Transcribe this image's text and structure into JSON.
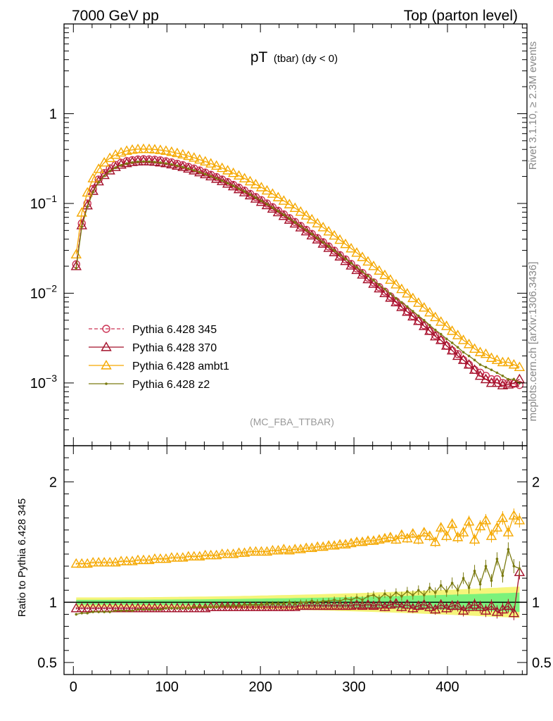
{
  "header": {
    "left_label": "7000 GeV pp",
    "right_label": "Top (parton level)"
  },
  "side_labels": {
    "rivet": "Rivet 3.1.10, ≥ 2.3M events",
    "mcplots": "mcplots.cern.ch [arXiv:1306.3436]"
  },
  "chart_data": [
    {
      "type": "line",
      "title": "pT (tbar) (dy < 0)",
      "title_main": "pT",
      "title_sub": "(tbar) (dy < 0)",
      "analysis_label": "(MC_FBA_TTBAR)",
      "xlabel": "",
      "ylabel": "",
      "xlim": [
        -10,
        485
      ],
      "ylim": [
        0.0002,
        10
      ],
      "yscale": "log",
      "ytick_labels": [
        "10^-3",
        "10^-2",
        "10^-1",
        "1"
      ],
      "legend_position": "middle-left",
      "x": [
        3,
        9,
        15,
        21,
        27,
        33,
        39,
        45,
        51,
        57,
        63,
        69,
        75,
        81,
        87,
        93,
        99,
        105,
        111,
        117,
        123,
        129,
        135,
        141,
        147,
        153,
        159,
        165,
        171,
        177,
        183,
        189,
        195,
        201,
        207,
        213,
        219,
        225,
        231,
        237,
        243,
        249,
        255,
        261,
        267,
        273,
        279,
        285,
        291,
        297,
        303,
        309,
        315,
        321,
        327,
        333,
        339,
        345,
        351,
        357,
        363,
        369,
        375,
        381,
        387,
        393,
        399,
        405,
        411,
        417,
        423,
        429,
        435,
        441,
        447,
        453,
        459,
        465,
        471,
        477
      ],
      "series": [
        {
          "name": "Pythia 6.428 345",
          "color": "#cc3355",
          "marker": "circle",
          "line": "dashed",
          "values": [
            0.021,
            0.06,
            0.1,
            0.145,
            0.185,
            0.218,
            0.246,
            0.268,
            0.284,
            0.296,
            0.304,
            0.309,
            0.311,
            0.31,
            0.307,
            0.302,
            0.295,
            0.287,
            0.277,
            0.267,
            0.256,
            0.245,
            0.233,
            0.221,
            0.209,
            0.197,
            0.185,
            0.173,
            0.161,
            0.15,
            0.139,
            0.128,
            0.118,
            0.109,
            0.1,
            0.091,
            0.083,
            0.0756,
            0.0686,
            0.0622,
            0.0562,
            0.0508,
            0.0458,
            0.0412,
            0.037,
            0.0332,
            0.0298,
            0.0266,
            0.0238,
            0.0212,
            0.0189,
            0.0168,
            0.0149,
            0.0132,
            0.0117,
            0.0104,
            0.0092,
            0.0081,
            0.0072,
            0.0063,
            0.0056,
            0.0049,
            0.0044,
            0.0038,
            0.0034,
            0.003,
            0.0026,
            0.0023,
            0.0021,
            0.0018,
            0.0016,
            0.0014,
            0.0013,
            0.0012,
            0.0011,
            0.0011,
            0.001,
            0.001,
            0.00098,
            0.00095
          ]
        },
        {
          "name": "Pythia 6.428 370",
          "color": "#a3102a",
          "marker": "triangle",
          "line": "solid",
          "values": [
            0.02,
            0.057,
            0.095,
            0.138,
            0.176,
            0.207,
            0.233,
            0.254,
            0.27,
            0.281,
            0.289,
            0.293,
            0.295,
            0.294,
            0.291,
            0.286,
            0.28,
            0.272,
            0.263,
            0.254,
            0.244,
            0.233,
            0.222,
            0.211,
            0.2,
            0.188,
            0.177,
            0.166,
            0.155,
            0.144,
            0.133,
            0.123,
            0.113,
            0.104,
            0.0955,
            0.0873,
            0.0796,
            0.0724,
            0.0658,
            0.0596,
            0.054,
            0.0488,
            0.044,
            0.0396,
            0.0356,
            0.0319,
            0.0286,
            0.0256,
            0.0228,
            0.0203,
            0.0181,
            0.0161,
            0.0143,
            0.0127,
            0.0113,
            0.01,
            0.0089,
            0.0079,
            0.007,
            0.0062,
            0.0055,
            0.0049,
            0.0043,
            0.0038,
            0.0033,
            0.003,
            0.0026,
            0.0023,
            0.002,
            0.0018,
            0.0016,
            0.0014,
            0.0012,
            0.0011,
            0.001,
            0.001,
            0.00094,
            0.00096,
            0.001,
            0.0011
          ]
        },
        {
          "name": "Pythia 6.428 ambt1",
          "color": "#f5a800",
          "marker": "triangle",
          "line": "solid",
          "values": [
            0.027,
            0.079,
            0.132,
            0.19,
            0.242,
            0.285,
            0.32,
            0.348,
            0.369,
            0.385,
            0.396,
            0.402,
            0.404,
            0.403,
            0.399,
            0.393,
            0.385,
            0.375,
            0.363,
            0.351,
            0.337,
            0.323,
            0.308,
            0.293,
            0.278,
            0.263,
            0.248,
            0.233,
            0.218,
            0.204,
            0.19,
            0.176,
            0.163,
            0.151,
            0.139,
            0.128,
            0.117,
            0.107,
            0.0977,
            0.0889,
            0.0807,
            0.0732,
            0.0663,
            0.0599,
            0.0541,
            0.0487,
            0.0438,
            0.0393,
            0.0352,
            0.0315,
            0.0282,
            0.0252,
            0.0225,
            0.02,
            0.0178,
            0.0159,
            0.0141,
            0.0125,
            0.0111,
            0.0099,
            0.0088,
            0.0078,
            0.0069,
            0.0061,
            0.0054,
            0.0048,
            0.0043,
            0.0038,
            0.0034,
            0.003,
            0.0027,
            0.0024,
            0.0022,
            0.0021,
            0.0019,
            0.0018,
            0.0017,
            0.0017,
            0.0016,
            0.0015
          ]
        },
        {
          "name": "Pythia 6.428 z2",
          "color": "#7a7a10",
          "marker": "dot",
          "line": "solid",
          "values": [
            0.019,
            0.055,
            0.092,
            0.134,
            0.172,
            0.203,
            0.229,
            0.25,
            0.266,
            0.278,
            0.286,
            0.291,
            0.293,
            0.292,
            0.289,
            0.285,
            0.279,
            0.272,
            0.263,
            0.254,
            0.244,
            0.234,
            0.223,
            0.212,
            0.201,
            0.19,
            0.179,
            0.168,
            0.157,
            0.146,
            0.136,
            0.126,
            0.116,
            0.107,
            0.0982,
            0.0898,
            0.082,
            0.0747,
            0.0679,
            0.0616,
            0.0558,
            0.0505,
            0.0456,
            0.0411,
            0.037,
            0.0333,
            0.0299,
            0.0268,
            0.0241,
            0.0216,
            0.0194,
            0.0174,
            0.0156,
            0.0139,
            0.0124,
            0.0111,
            0.0099,
            0.0088,
            0.0079,
            0.0071,
            0.0063,
            0.0056,
            0.005,
            0.0044,
            0.0039,
            0.0035,
            0.0031,
            0.0028,
            0.0025,
            0.0022,
            0.002,
            0.0018,
            0.0016,
            0.0015,
            0.0014,
            0.0013,
            0.0012,
            0.0011,
            0.0011,
            0.001
          ]
        }
      ]
    },
    {
      "type": "line",
      "title": "",
      "xlabel": "",
      "ylabel": "Ratio to Pythia 6.428 345",
      "xlim": [
        -10,
        485
      ],
      "ylim": [
        0.4,
        2.3
      ],
      "xticks": [
        0,
        100,
        200,
        300,
        400
      ],
      "ytick_labels": [
        "0.5",
        "1",
        "2"
      ],
      "reference_line": 1,
      "band_colors": {
        "inner": "#7cf27c",
        "outer": "#f5f57a"
      },
      "x": [
        3,
        9,
        15,
        21,
        27,
        33,
        39,
        45,
        51,
        57,
        63,
        69,
        75,
        81,
        87,
        93,
        99,
        105,
        111,
        117,
        123,
        129,
        135,
        141,
        147,
        153,
        159,
        165,
        171,
        177,
        183,
        189,
        195,
        201,
        207,
        213,
        219,
        225,
        231,
        237,
        243,
        249,
        255,
        261,
        267,
        273,
        279,
        285,
        291,
        297,
        303,
        309,
        315,
        321,
        327,
        333,
        339,
        345,
        351,
        357,
        363,
        369,
        375,
        381,
        387,
        393,
        399,
        405,
        411,
        417,
        423,
        429,
        435,
        441,
        447,
        453,
        459,
        465,
        471,
        477
      ],
      "series": [
        {
          "name": "Pythia 6.428 370",
          "color": "#a3102a",
          "marker": "triangle",
          "values": [
            0.95,
            0.95,
            0.95,
            0.95,
            0.95,
            0.95,
            0.95,
            0.95,
            0.95,
            0.95,
            0.95,
            0.95,
            0.95,
            0.95,
            0.95,
            0.95,
            0.95,
            0.95,
            0.95,
            0.95,
            0.95,
            0.95,
            0.95,
            0.95,
            0.96,
            0.96,
            0.96,
            0.96,
            0.96,
            0.96,
            0.96,
            0.96,
            0.96,
            0.96,
            0.96,
            0.96,
            0.96,
            0.96,
            0.96,
            0.96,
            0.97,
            0.97,
            0.97,
            0.97,
            0.97,
            0.97,
            0.97,
            0.97,
            0.97,
            0.97,
            0.98,
            0.97,
            0.98,
            0.97,
            0.98,
            0.96,
            0.98,
            0.99,
            0.96,
            0.98,
            0.95,
            0.97,
            0.98,
            0.96,
            0.94,
            0.98,
            0.95,
            0.97,
            0.97,
            0.93,
            0.96,
            0.98,
            0.96,
            0.93,
            0.97,
            0.92,
            0.94,
            0.97,
            0.91,
            1.25
          ]
        },
        {
          "name": "Pythia 6.428 ambt1",
          "color": "#f5a800",
          "marker": "triangle",
          "values": [
            1.32,
            1.32,
            1.32,
            1.33,
            1.33,
            1.33,
            1.33,
            1.33,
            1.34,
            1.34,
            1.34,
            1.35,
            1.35,
            1.35,
            1.36,
            1.36,
            1.36,
            1.37,
            1.37,
            1.37,
            1.38,
            1.38,
            1.38,
            1.39,
            1.39,
            1.39,
            1.4,
            1.4,
            1.4,
            1.41,
            1.41,
            1.42,
            1.42,
            1.42,
            1.42,
            1.43,
            1.43,
            1.44,
            1.43,
            1.44,
            1.44,
            1.45,
            1.45,
            1.46,
            1.46,
            1.47,
            1.47,
            1.48,
            1.48,
            1.49,
            1.5,
            1.5,
            1.51,
            1.51,
            1.52,
            1.53,
            1.54,
            1.52,
            1.56,
            1.53,
            1.57,
            1.52,
            1.58,
            1.55,
            1.5,
            1.62,
            1.55,
            1.65,
            1.54,
            1.58,
            1.67,
            1.52,
            1.63,
            1.68,
            1.55,
            1.62,
            1.7,
            1.58,
            1.72,
            1.68
          ]
        },
        {
          "name": "Pythia 6.428 z2",
          "color": "#7a7a10",
          "marker": "dot",
          "values": [
            0.9,
            0.91,
            0.91,
            0.92,
            0.92,
            0.92,
            0.92,
            0.93,
            0.93,
            0.93,
            0.93,
            0.94,
            0.94,
            0.94,
            0.94,
            0.94,
            0.95,
            0.95,
            0.95,
            0.95,
            0.95,
            0.96,
            0.96,
            0.96,
            0.96,
            0.96,
            0.97,
            0.97,
            0.97,
            0.97,
            0.98,
            0.98,
            0.98,
            0.98,
            0.99,
            0.99,
            0.99,
            0.99,
            1.0,
            0.99,
            1.0,
            1.0,
            1.01,
            1.0,
            1.01,
            1.01,
            1.02,
            1.01,
            1.03,
            1.02,
            1.04,
            1.02,
            1.05,
            1.06,
            1.03,
            1.07,
            1.04,
            1.08,
            1.05,
            1.09,
            1.06,
            1.1,
            1.06,
            1.12,
            1.08,
            1.14,
            1.09,
            1.16,
            1.1,
            1.2,
            1.12,
            1.26,
            1.15,
            1.3,
            1.18,
            1.36,
            1.22,
            1.44,
            1.3,
            1.28
          ]
        }
      ]
    }
  ]
}
